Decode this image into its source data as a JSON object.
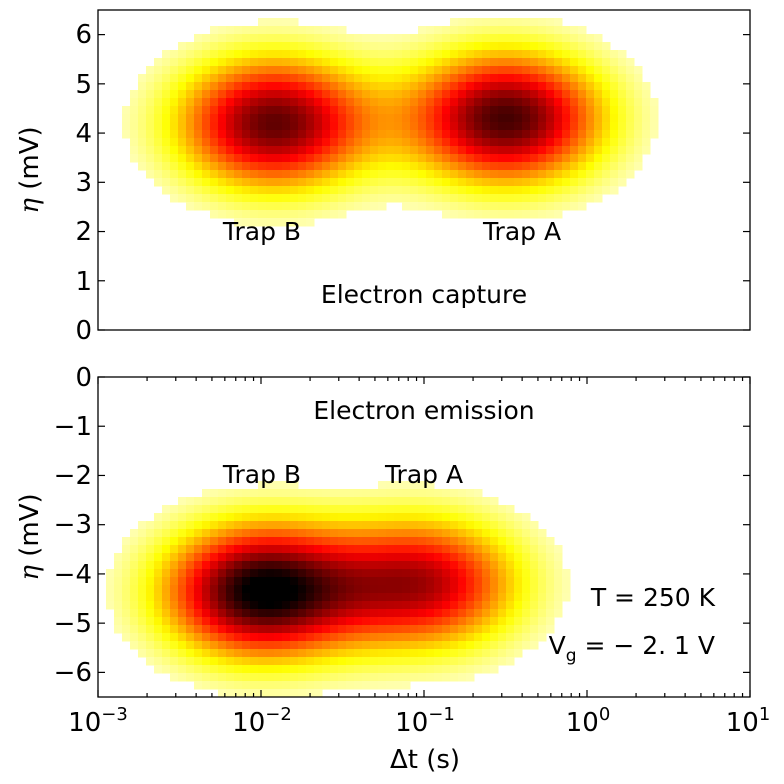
{
  "chart_data": [
    {
      "type": "heatmap",
      "panel": "top",
      "xscale": "log",
      "xlim": [
        0.001,
        10
      ],
      "ylim": [
        0,
        6.5
      ],
      "yticks": [
        0,
        1,
        2,
        3,
        4,
        5,
        6
      ],
      "ylabel": "η (mV)",
      "colormap": "hot",
      "clusters": [
        {
          "name": "Trap B",
          "x": 0.012,
          "y": 4.2,
          "peak": 0.86
        },
        {
          "name": "Trap A",
          "x": 0.32,
          "y": 4.3,
          "peak": 0.9
        }
      ],
      "annotations": [
        {
          "text": "Trap B",
          "x": 0.012,
          "y": 2.0
        },
        {
          "text": "Trap A",
          "x": 0.32,
          "y": 2.0
        },
        {
          "text": "Electron capture",
          "x": 0.11,
          "y": 0.7
        }
      ]
    },
    {
      "type": "heatmap",
      "panel": "bottom",
      "xscale": "log",
      "xlim": [
        0.001,
        10
      ],
      "ylim": [
        -6.5,
        0
      ],
      "yticks": [
        0,
        -1,
        -2,
        -3,
        -4,
        -5,
        -6
      ],
      "xticks": [
        0.001,
        0.01,
        0.1,
        1,
        10
      ],
      "xlabel": "Δt (s)",
      "ylabel": "η (mV)",
      "colormap": "hot",
      "clusters": [
        {
          "name": "Trap B",
          "x": 0.01,
          "y": -4.35,
          "peak": 1.0
        },
        {
          "name": "Trap A",
          "x": 0.1,
          "y": -4.2,
          "peak": 0.72
        }
      ],
      "annotations": [
        {
          "text": "Electron emission",
          "x": 0.1,
          "y": -0.7
        },
        {
          "text": "Trap B",
          "x": 0.012,
          "y": -2.0
        },
        {
          "text": "Trap A",
          "x": 0.1,
          "y": -2.0
        },
        {
          "text": "T = 250 K",
          "x": 5.0,
          "y": -4.5
        },
        {
          "text": "V_g = −2.1 V",
          "x": 5.0,
          "y": -5.5
        }
      ]
    }
  ],
  "text": {
    "top_trap_b": "Trap B",
    "top_trap_a": "Trap A",
    "top_title": "Electron capture",
    "bottom_title": "Electron emission",
    "bottom_trap_b": "Trap B",
    "bottom_trap_a": "Trap A",
    "temperature": "T = 250 K",
    "voltage_prefix": "V",
    "voltage_sub": "g",
    "voltage_suffix": " = − 2. 1 V",
    "top_ylabel_sym": "η",
    "top_ylabel_unit": " (mV)",
    "bottom_ylabel_sym": "η",
    "bottom_ylabel_unit": " (mV)",
    "xlabel": "Δt (s)",
    "xtick_base": "10",
    "xtick_exps": [
      "−3",
      "−2",
      "−1",
      "0",
      "1"
    ],
    "top_yticks": [
      "0",
      "1",
      "2",
      "3",
      "4",
      "5",
      "6"
    ],
    "bottom_yticks": [
      "0",
      "−1",
      "−2",
      "−3",
      "−4",
      "−5",
      "−6"
    ]
  }
}
